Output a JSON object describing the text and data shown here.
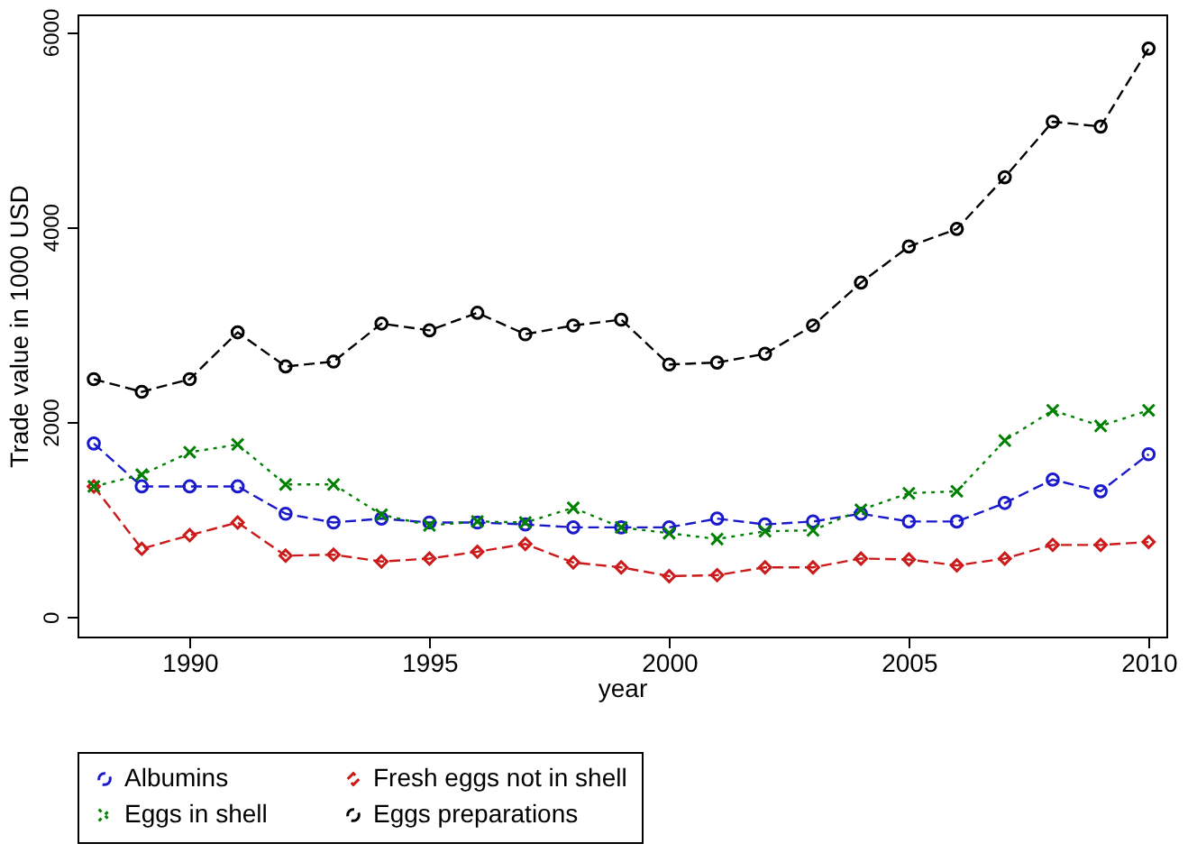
{
  "chart_data": {
    "type": "line",
    "xlabel": "year",
    "ylabel": "Trade value in 1000 USD",
    "x": [
      1988,
      1989,
      1990,
      1991,
      1992,
      1993,
      1994,
      1995,
      1996,
      1997,
      1998,
      1999,
      2000,
      2001,
      2002,
      2003,
      2004,
      2005,
      2006,
      2007,
      2008,
      2009,
      2010
    ],
    "series": [
      {
        "name": "Albumins",
        "color": "#1a1acc",
        "marker": "circle",
        "line_style": "dashed",
        "values": [
          1780,
          1340,
          1340,
          1340,
          1060,
          970,
          1010,
          970,
          970,
          950,
          920,
          920,
          920,
          1010,
          950,
          980,
          1060,
          980,
          980,
          1170,
          1410,
          1290,
          1670
        ]
      },
      {
        "name": "Fresh eggs not in shell",
        "color": "#cc1a1a",
        "marker": "diamond",
        "line_style": "dashed",
        "values": [
          1340,
          700,
          840,
          970,
          630,
          640,
          570,
          600,
          670,
          750,
          560,
          510,
          420,
          430,
          510,
          510,
          600,
          590,
          530,
          600,
          740,
          740,
          770
        ]
      },
      {
        "name": "Eggs in shell",
        "color": "#008000",
        "marker": "cross",
        "line_style": "dotted",
        "values": [
          1340,
          1460,
          1690,
          1770,
          1360,
          1360,
          1050,
          940,
          980,
          970,
          1120,
          920,
          860,
          800,
          880,
          890,
          1100,
          1270,
          1290,
          1810,
          2120,
          1960,
          2120
        ]
      },
      {
        "name": "Eggs preparations",
        "color": "#000000",
        "marker": "circle",
        "line_style": "dashed",
        "values": [
          2440,
          2310,
          2440,
          2920,
          2570,
          2620,
          3010,
          2940,
          3120,
          2900,
          2990,
          3050,
          2590,
          2610,
          2700,
          2990,
          3430,
          3800,
          3980,
          4510,
          5080,
          5030,
          5830
        ]
      }
    ],
    "xlim": [
      1987.66,
      2010.37
    ],
    "xticks": [
      1990,
      1995,
      2000,
      2005,
      2010
    ],
    "ylim": [
      -200,
      6180
    ],
    "yticks": [
      0,
      2000,
      4000,
      6000
    ],
    "grid": false,
    "legend": "bottom"
  }
}
